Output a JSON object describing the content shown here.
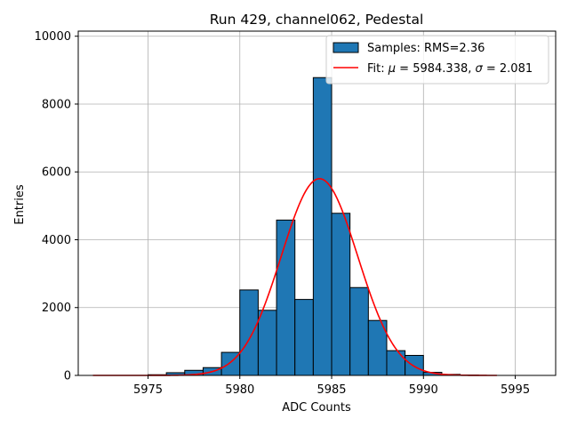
{
  "chart_data": {
    "type": "bar",
    "title": "Run 429, channel062, Pedestal",
    "xlabel": "ADC Counts",
    "ylabel": "Entries",
    "xlim": [
      5971.2,
      5997.2
    ],
    "ylim": [
      0,
      10150
    ],
    "xticks": [
      5975,
      5980,
      5985,
      5990,
      5995
    ],
    "yticks": [
      0,
      2000,
      4000,
      6000,
      8000,
      10000
    ],
    "grid": true,
    "legend_position": "top-right",
    "bar_color": "#1f77b4",
    "fit_color": "#ff0000",
    "histogram": {
      "name": "Samples: RMS=2.36",
      "bin_edges": [
        5975,
        5976,
        5977,
        5978,
        5979,
        5980,
        5981,
        5982,
        5983,
        5984,
        5985,
        5986,
        5987,
        5988,
        5989,
        5990,
        5991,
        5992,
        5993,
        5994,
        5995,
        5996
      ],
      "counts": [
        20,
        80,
        150,
        230,
        680,
        2520,
        1920,
        4580,
        2240,
        8780,
        4780,
        2590,
        1620,
        730,
        590,
        90,
        30,
        10,
        0,
        0,
        0
      ]
    },
    "fit": {
      "name_prefix": "Fit: ",
      "name_mu": "μ",
      "name_mid": " = 5984.338, ",
      "name_sigma": "σ",
      "name_suffix": " = 2.081",
      "mu": 5984.338,
      "sigma": 2.081,
      "amplitude": 5800,
      "x_range": [
        5972,
        5994
      ]
    }
  }
}
